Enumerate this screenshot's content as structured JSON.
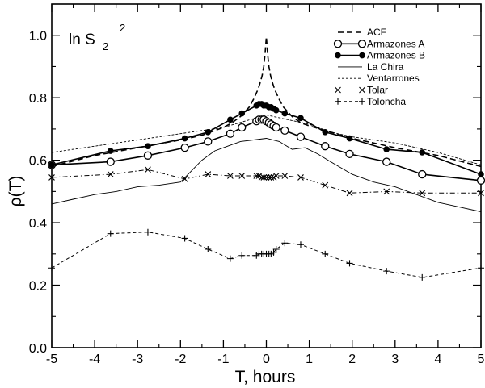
{
  "chart_data": {
    "type": "line",
    "title_main": "ln S",
    "title_subscript": "2",
    "title_superscript": "2",
    "xlabel": "T, hours",
    "ylabel": "ρ(T)",
    "xlim": [
      -5,
      5
    ],
    "ylim": [
      0,
      1.1
    ],
    "xticks": [
      -5,
      -4,
      -3,
      -2,
      -1,
      0,
      1,
      2,
      3,
      4,
      5
    ],
    "xtick_labels": [
      "-5",
      "-4",
      "-3",
      "-2",
      "-1",
      "0",
      "1",
      "2",
      "3",
      "4",
      "5"
    ],
    "yticks": [
      0,
      0.2,
      0.4,
      0.6,
      0.8,
      1.0
    ],
    "ytick_labels": [
      "0.0",
      "0.2",
      "0.4",
      "0.6",
      "0.8",
      "1.0"
    ],
    "legend_position": "top-right",
    "series": [
      {
        "name": "ACF",
        "line": "dashed-long",
        "marker": "none",
        "x": [
          -5,
          -4,
          -3,
          -2,
          -1.5,
          -1,
          -0.8,
          -0.6,
          -0.4,
          -0.3,
          -0.2,
          -0.15,
          -0.1,
          -0.06,
          -0.03,
          0,
          0.03,
          0.06,
          0.1,
          0.15,
          0.2,
          0.3,
          0.4,
          0.6,
          0.8,
          1,
          1.5,
          2,
          3,
          4,
          5
        ],
        "y": [
          0.58,
          0.615,
          0.64,
          0.665,
          0.68,
          0.705,
          0.72,
          0.74,
          0.77,
          0.795,
          0.825,
          0.845,
          0.87,
          0.9,
          0.94,
          0.995,
          0.94,
          0.9,
          0.87,
          0.845,
          0.825,
          0.795,
          0.77,
          0.74,
          0.72,
          0.71,
          0.69,
          0.67,
          0.64,
          0.615,
          0.58
        ]
      },
      {
        "name": "Armazones A",
        "line": "solid",
        "marker": "open-circle",
        "x": [
          -5,
          -3.63,
          -2.76,
          -1.9,
          -1.36,
          -0.84,
          -0.57,
          -0.23,
          -0.17,
          -0.11,
          -0.06,
          0,
          0.06,
          0.11,
          0.17,
          0.23,
          0.43,
          0.8,
          1.37,
          1.94,
          2.8,
          3.63,
          5
        ],
        "y": [
          0.585,
          0.595,
          0.615,
          0.64,
          0.66,
          0.685,
          0.705,
          0.725,
          0.73,
          0.73,
          0.73,
          0.725,
          0.72,
          0.715,
          0.71,
          0.705,
          0.695,
          0.675,
          0.645,
          0.62,
          0.595,
          0.555,
          0.535
        ]
      },
      {
        "name": "Armazones B",
        "line": "solid",
        "marker": "filled-circle",
        "x": [
          -5,
          -3.63,
          -2.76,
          -1.9,
          -1.36,
          -0.84,
          -0.57,
          -0.23,
          -0.17,
          -0.11,
          -0.06,
          0,
          0.06,
          0.11,
          0.17,
          0.23,
          0.43,
          0.8,
          1.37,
          1.94,
          2.8,
          3.63,
          5
        ],
        "y": [
          0.585,
          0.63,
          0.645,
          0.67,
          0.69,
          0.73,
          0.75,
          0.775,
          0.78,
          0.78,
          0.775,
          0.775,
          0.77,
          0.77,
          0.765,
          0.76,
          0.75,
          0.735,
          0.69,
          0.67,
          0.635,
          0.625,
          0.555
        ]
      },
      {
        "name": "La Chira",
        "line": "solid-thin",
        "marker": "none",
        "x": [
          -5,
          -4.5,
          -4,
          -3.5,
          -3,
          -2.5,
          -2,
          -1.5,
          -1.2,
          -0.9,
          -0.6,
          -0.3,
          0,
          0.3,
          0.6,
          0.9,
          1.2,
          1.5,
          2,
          2.5,
          3,
          3.5,
          4,
          4.5,
          5
        ],
        "y": [
          0.46,
          0.475,
          0.49,
          0.5,
          0.515,
          0.52,
          0.53,
          0.6,
          0.63,
          0.645,
          0.66,
          0.665,
          0.67,
          0.66,
          0.635,
          0.64,
          0.62,
          0.595,
          0.555,
          0.53,
          0.515,
          0.49,
          0.465,
          0.45,
          0.435
        ]
      },
      {
        "name": "Ventarrones",
        "line": "dashed-short",
        "marker": "none",
        "x": [
          -5,
          -4,
          -3,
          -2,
          -1,
          -0.5,
          0,
          0.5,
          1,
          1.5,
          2,
          3,
          4,
          5
        ],
        "y": [
          0.625,
          0.645,
          0.665,
          0.685,
          0.705,
          0.725,
          0.745,
          0.73,
          0.715,
          0.69,
          0.675,
          0.655,
          0.625,
          0.585
        ]
      },
      {
        "name": "Tolar",
        "line": "dash-dot",
        "marker": "x-cross",
        "x": [
          -5,
          -3.63,
          -2.76,
          -1.9,
          -1.36,
          -0.84,
          -0.57,
          -0.23,
          -0.17,
          -0.11,
          -0.06,
          0,
          0.06,
          0.11,
          0.17,
          0.23,
          0.43,
          0.8,
          1.37,
          1.94,
          2.8,
          3.63,
          5
        ],
        "y": [
          0.545,
          0.555,
          0.57,
          0.54,
          0.555,
          0.55,
          0.55,
          0.55,
          0.55,
          0.545,
          0.545,
          0.545,
          0.545,
          0.545,
          0.545,
          0.55,
          0.55,
          0.545,
          0.52,
          0.495,
          0.5,
          0.495,
          0.495
        ]
      },
      {
        "name": "Toloncha",
        "line": "dashed-plus",
        "marker": "plus",
        "x": [
          -5,
          -3.63,
          -2.76,
          -1.9,
          -1.36,
          -0.84,
          -0.57,
          -0.23,
          -0.17,
          -0.11,
          -0.06,
          0,
          0.06,
          0.11,
          0.17,
          0.23,
          0.43,
          0.8,
          1.37,
          1.94,
          2.8,
          3.63,
          5
        ],
        "y": [
          0.255,
          0.365,
          0.37,
          0.35,
          0.315,
          0.285,
          0.295,
          0.295,
          0.3,
          0.3,
          0.3,
          0.3,
          0.3,
          0.3,
          0.305,
          0.315,
          0.335,
          0.33,
          0.3,
          0.27,
          0.245,
          0.225,
          0.255
        ]
      }
    ]
  }
}
